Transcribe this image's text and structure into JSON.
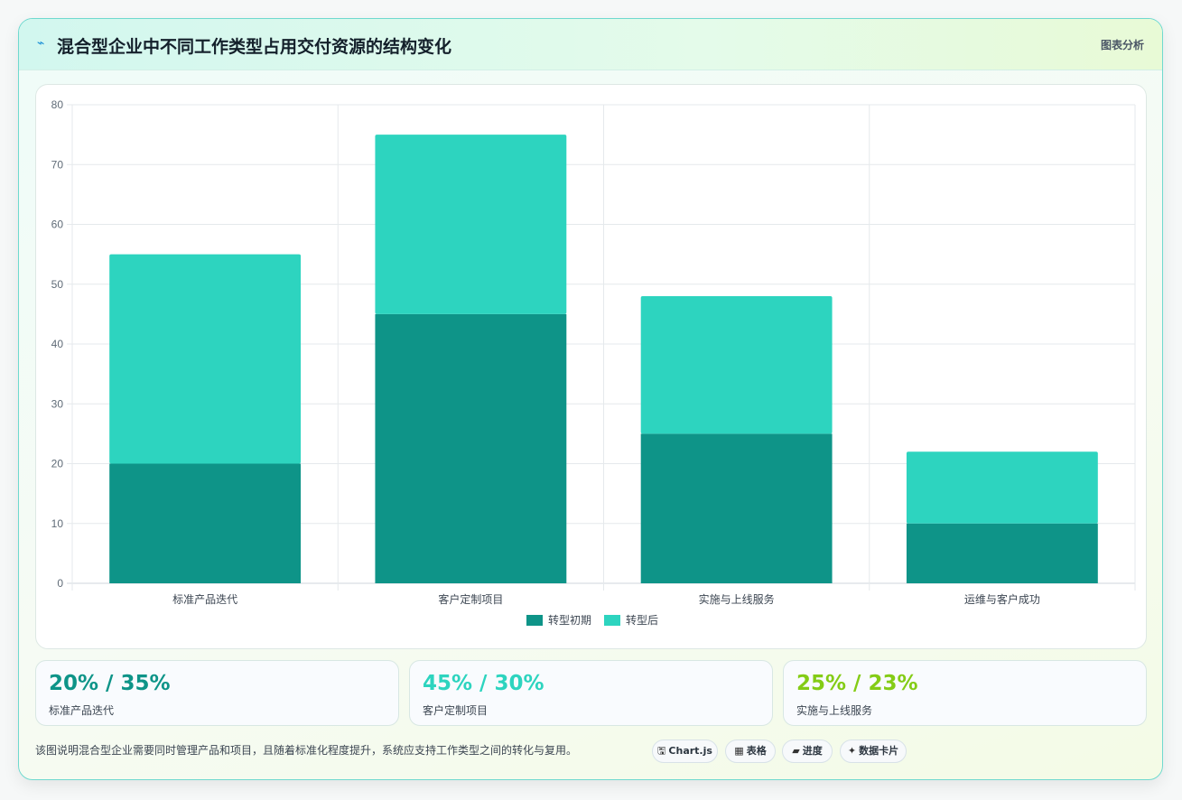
{
  "header": {
    "icon": "zap-icon",
    "title": "混合型企业中不同工作类型占用交付资源的结构变化",
    "link_label": "图表分析"
  },
  "chart_data": {
    "type": "bar",
    "stacked": true,
    "categories": [
      "标准产品迭代",
      "客户定制项目",
      "实施与上线服务",
      "运维与客户成功"
    ],
    "series": [
      {
        "name": "转型初期",
        "values": [
          20,
          45,
          25,
          10
        ],
        "color": "#0e9488"
      },
      {
        "name": "转型后",
        "values": [
          35,
          30,
          23,
          12
        ],
        "color": "#2dd4bf"
      }
    ],
    "ylim": [
      0,
      80
    ],
    "yticks": [
      0,
      10,
      20,
      30,
      40,
      50,
      60,
      70,
      80
    ],
    "grid": true,
    "legend_position": "bottom"
  },
  "stats": [
    {
      "value": "20% / 35%",
      "label": "标准产品迭代",
      "color": "#0e9488"
    },
    {
      "value": "45% / 30%",
      "label": "客户定制项目",
      "color": "#2dd4bf"
    },
    {
      "value": "25% / 23%",
      "label": "实施与上线服务",
      "color": "#84cc16"
    }
  ],
  "footnote": "该图说明混合型企业需要同时管理产品和项目，且随着标准化程度提升，系统应支持工作类型之间的转化与复用。",
  "chips": [
    {
      "icon": "🖫",
      "icon_name": "save-icon",
      "label": "Chart.js"
    },
    {
      "icon": "▦",
      "icon_name": "table-icon",
      "label": "表格"
    },
    {
      "icon": "▰",
      "icon_name": "progress-icon",
      "label": "进度"
    },
    {
      "icon": "✦",
      "icon_name": "sparkle-icon",
      "label": "数据卡片"
    }
  ]
}
